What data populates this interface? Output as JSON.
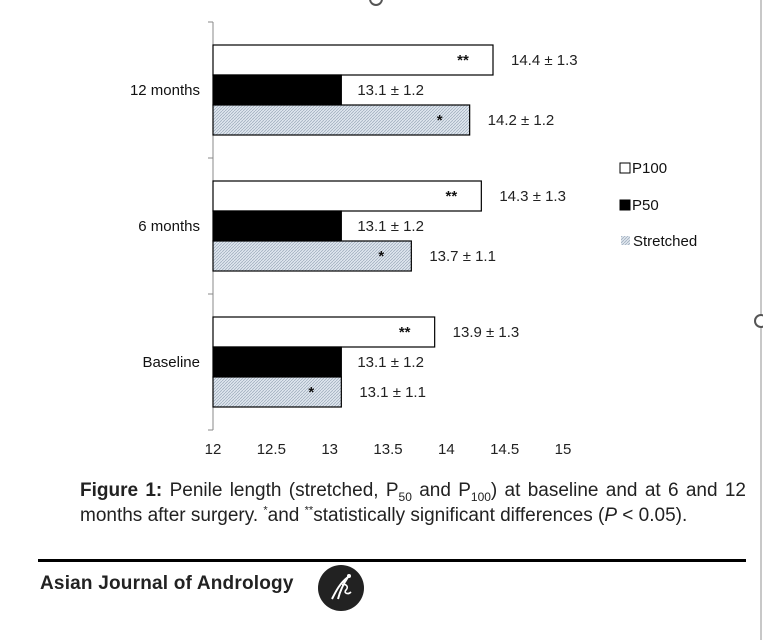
{
  "chart_data": {
    "type": "bar",
    "orientation": "horizontal",
    "categories": [
      "12 months",
      "6 months",
      "Baseline"
    ],
    "series": [
      {
        "name": "P100",
        "values": [
          14.4,
          14.3,
          13.9
        ],
        "sd": [
          1.3,
          1.3,
          1.3
        ],
        "labels": [
          "14.4 ± 1.3",
          "14.3 ± 1.3",
          "13.9 ± 1.3"
        ],
        "marks": [
          "**",
          "**",
          "**"
        ],
        "fill": "#ffffff"
      },
      {
        "name": "P50",
        "values": [
          13.1,
          13.1,
          13.1
        ],
        "sd": [
          1.2,
          1.2,
          1.2
        ],
        "labels": [
          "13.1 ± 1.2",
          "13.1 ± 1.2",
          "13.1 ± 1.2"
        ],
        "marks": [
          "",
          "",
          ""
        ],
        "fill": "#000000"
      },
      {
        "name": "Stretched",
        "values": [
          14.2,
          13.7,
          13.1
        ],
        "sd": [
          1.2,
          1.1,
          1.1
        ],
        "labels": [
          "14.2 ± 1.2",
          "13.7 ± 1.1",
          "13.1 ± 1.1"
        ],
        "marks": [
          "*",
          "*",
          "*"
        ],
        "fill": "#d4dde6"
      }
    ],
    "xlim": [
      12,
      15
    ],
    "xticks": [
      "12",
      "12.5",
      "13",
      "13.5",
      "14",
      "14.5",
      "15"
    ],
    "legend_position": "right",
    "grid": false
  },
  "caption": {
    "label": "Figure 1:",
    "t1": " Penile length (stretched, P",
    "s1": "50",
    "t2": " and P",
    "s2": "100",
    "t3": ") at baseline and at 6 and 12 months after surgery. ",
    "sup1": "*",
    "t4": "and ",
    "sup2": "**",
    "t5": "statistically significant differences (",
    "p": "P",
    "t6": " < 0.05)."
  },
  "footer": {
    "journal": "Asian Journal of Andrology"
  }
}
